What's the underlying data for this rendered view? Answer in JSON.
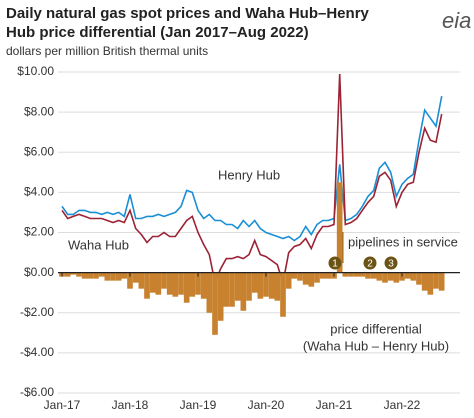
{
  "chart_data": {
    "type": "line",
    "title": [
      "Daily natural gas spot prices and Waha Hub–Henry",
      "Hub price differential (Jan 2017–Aug 2022)"
    ],
    "subtitle": "dollars per million British thermal units",
    "logo": "eia",
    "categories": [
      "Jan-17",
      null,
      null,
      null,
      null,
      null,
      null,
      null,
      null,
      null,
      null,
      null,
      "Jan-18",
      null,
      null,
      null,
      null,
      null,
      null,
      null,
      null,
      null,
      null,
      null,
      "Jan-19",
      null,
      null,
      null,
      null,
      null,
      null,
      null,
      null,
      null,
      null,
      null,
      "Jan-20",
      null,
      null,
      null,
      null,
      null,
      null,
      null,
      null,
      null,
      null,
      null,
      "Jan-21",
      null,
      null,
      null,
      null,
      null,
      null,
      null,
      null,
      null,
      null,
      null,
      "Jan-22",
      null,
      null,
      null,
      null,
      null,
      null,
      null
    ],
    "series": [
      {
        "name": "Henry Hub",
        "color": "#1a8fd6",
        "values": [
          3.3,
          2.9,
          2.9,
          3.1,
          3.1,
          3.0,
          3.0,
          2.9,
          3.0,
          2.9,
          3.0,
          2.8,
          3.9,
          2.7,
          2.7,
          2.8,
          2.8,
          2.9,
          2.8,
          2.9,
          3.0,
          3.3,
          4.1,
          4.0,
          3.1,
          2.7,
          2.9,
          2.6,
          2.6,
          2.4,
          2.4,
          2.2,
          2.6,
          2.3,
          2.6,
          2.2,
          2.0,
          1.9,
          1.8,
          1.7,
          1.8,
          1.6,
          1.8,
          2.3,
          1.9,
          2.4,
          2.6,
          2.6,
          2.7,
          5.4,
          2.6,
          2.7,
          2.9,
          3.3,
          3.8,
          4.1,
          5.2,
          5.5,
          5.0,
          3.8,
          4.4,
          4.7,
          4.9,
          6.6,
          8.1,
          7.7,
          7.3,
          8.8
        ]
      },
      {
        "name": "Waha Hub",
        "color": "#9b2335",
        "values": [
          3.1,
          2.7,
          2.8,
          2.9,
          2.8,
          2.7,
          2.7,
          2.7,
          2.6,
          2.5,
          2.6,
          2.5,
          3.1,
          2.2,
          1.9,
          1.5,
          1.8,
          1.8,
          2.0,
          1.8,
          1.8,
          2.2,
          2.6,
          2.8,
          2.0,
          1.4,
          0.9,
          -0.5,
          0.2,
          0.7,
          0.7,
          0.8,
          0.7,
          0.9,
          1.6,
          0.9,
          0.8,
          0.6,
          0.4,
          -0.5,
          1.0,
          1.3,
          1.4,
          1.7,
          1.2,
          1.9,
          2.3,
          2.3,
          2.4,
          9.9,
          2.4,
          2.5,
          2.7,
          3.1,
          3.5,
          3.8,
          4.8,
          5.0,
          4.6,
          3.3,
          4.0,
          4.4,
          4.5,
          6.0,
          7.2,
          6.6,
          6.5,
          7.9
        ]
      },
      {
        "name": "price differential",
        "color": "#c8822f",
        "type": "area",
        "values": [
          -0.2,
          -0.2,
          -0.1,
          -0.2,
          -0.3,
          -0.3,
          -0.3,
          -0.2,
          -0.4,
          -0.4,
          -0.4,
          -0.3,
          -0.8,
          -0.5,
          -0.8,
          -1.3,
          -1.0,
          -1.1,
          -0.8,
          -1.1,
          -1.2,
          -1.1,
          -1.5,
          -1.2,
          -1.1,
          -1.3,
          -2.0,
          -3.1,
          -2.4,
          -1.7,
          -1.7,
          -1.4,
          -1.9,
          -1.4,
          -1.0,
          -1.3,
          -1.2,
          -1.3,
          -1.4,
          -2.2,
          -0.8,
          -0.3,
          -0.4,
          -0.6,
          -0.7,
          -0.5,
          -0.3,
          -0.3,
          -0.3,
          4.5,
          -0.2,
          -0.2,
          -0.2,
          -0.2,
          -0.3,
          -0.3,
          -0.4,
          -0.5,
          -0.4,
          -0.5,
          -0.4,
          -0.3,
          -0.4,
          -0.6,
          -0.9,
          -1.1,
          -0.8,
          -0.9
        ]
      }
    ],
    "differential_note": "(Waha Hub – Henry Hub)",
    "pipelines_label": "pipelines in service",
    "pipelines": [
      "1",
      "2",
      "3"
    ],
    "ylim": [
      -6,
      10
    ],
    "yticks": [
      {
        "value": -6,
        "label": "-$6.00"
      },
      {
        "value": -4,
        "label": "-$4.00"
      },
      {
        "value": -2,
        "label": "-$2.00"
      },
      {
        "value": 0,
        "label": "$0.00"
      },
      {
        "value": 2,
        "label": "$2.00"
      },
      {
        "value": 4,
        "label": "$4.00"
      },
      {
        "value": 6,
        "label": "$6.00"
      },
      {
        "value": 8,
        "label": "$8.00"
      },
      {
        "value": 10,
        "label": "$10.00"
      }
    ],
    "grid": true
  }
}
